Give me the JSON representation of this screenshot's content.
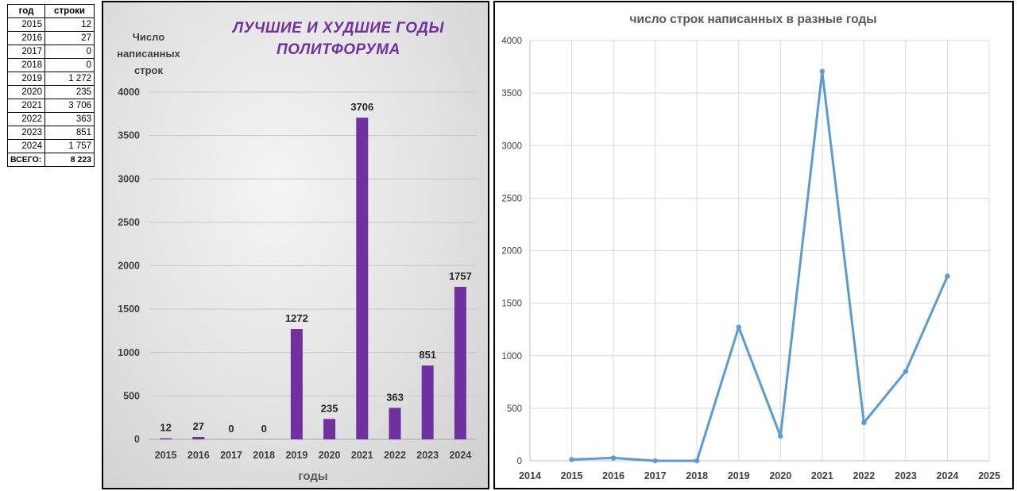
{
  "table": {
    "headers": [
      "год",
      "строки"
    ],
    "rows": [
      [
        "2015",
        "12"
      ],
      [
        "2016",
        "27"
      ],
      [
        "2017",
        "0"
      ],
      [
        "2018",
        "0"
      ],
      [
        "2019",
        "1 272"
      ],
      [
        "2020",
        "235"
      ],
      [
        "2021",
        "3 706"
      ],
      [
        "2022",
        "363"
      ],
      [
        "2023",
        "851"
      ],
      [
        "2024",
        "1 757"
      ]
    ],
    "total_label": "ВСЕГО:",
    "total_value": "8 223"
  },
  "chart_data": [
    {
      "type": "bar",
      "title_lines": [
        "ЛУЧШИЕ И ХУДШИЕ ГОДЫ",
        "ПОЛИТФОРУМА"
      ],
      "title_color": "#7030a0",
      "ylabel_lines": [
        "Число",
        "написанных",
        "строк"
      ],
      "xlabel": "годы",
      "categories": [
        "2015",
        "2016",
        "2017",
        "2018",
        "2019",
        "2020",
        "2021",
        "2022",
        "2023",
        "2024"
      ],
      "values": [
        12,
        27,
        0,
        0,
        1272,
        235,
        3706,
        363,
        851,
        1757
      ],
      "ylim": [
        0,
        4000
      ],
      "yticks": [
        0,
        500,
        1000,
        1500,
        2000,
        2500,
        3000,
        3500,
        4000
      ],
      "bar_color": "#7030a0",
      "grid": true,
      "data_labels": true
    },
    {
      "type": "line",
      "title": "число строк написанных в разные годы",
      "x": [
        2015,
        2016,
        2017,
        2018,
        2019,
        2020,
        2021,
        2022,
        2023,
        2024
      ],
      "values": [
        12,
        27,
        0,
        0,
        1272,
        235,
        3706,
        363,
        851,
        1757
      ],
      "xlim": [
        2014,
        2025
      ],
      "xticks": [
        2014,
        2015,
        2016,
        2017,
        2018,
        2019,
        2020,
        2021,
        2022,
        2023,
        2024,
        2025
      ],
      "ylim": [
        0,
        4000
      ],
      "yticks": [
        0,
        500,
        1000,
        1500,
        2000,
        2500,
        3000,
        3500,
        4000
      ],
      "line_color": "#5b9bd5",
      "grid": true
    }
  ]
}
